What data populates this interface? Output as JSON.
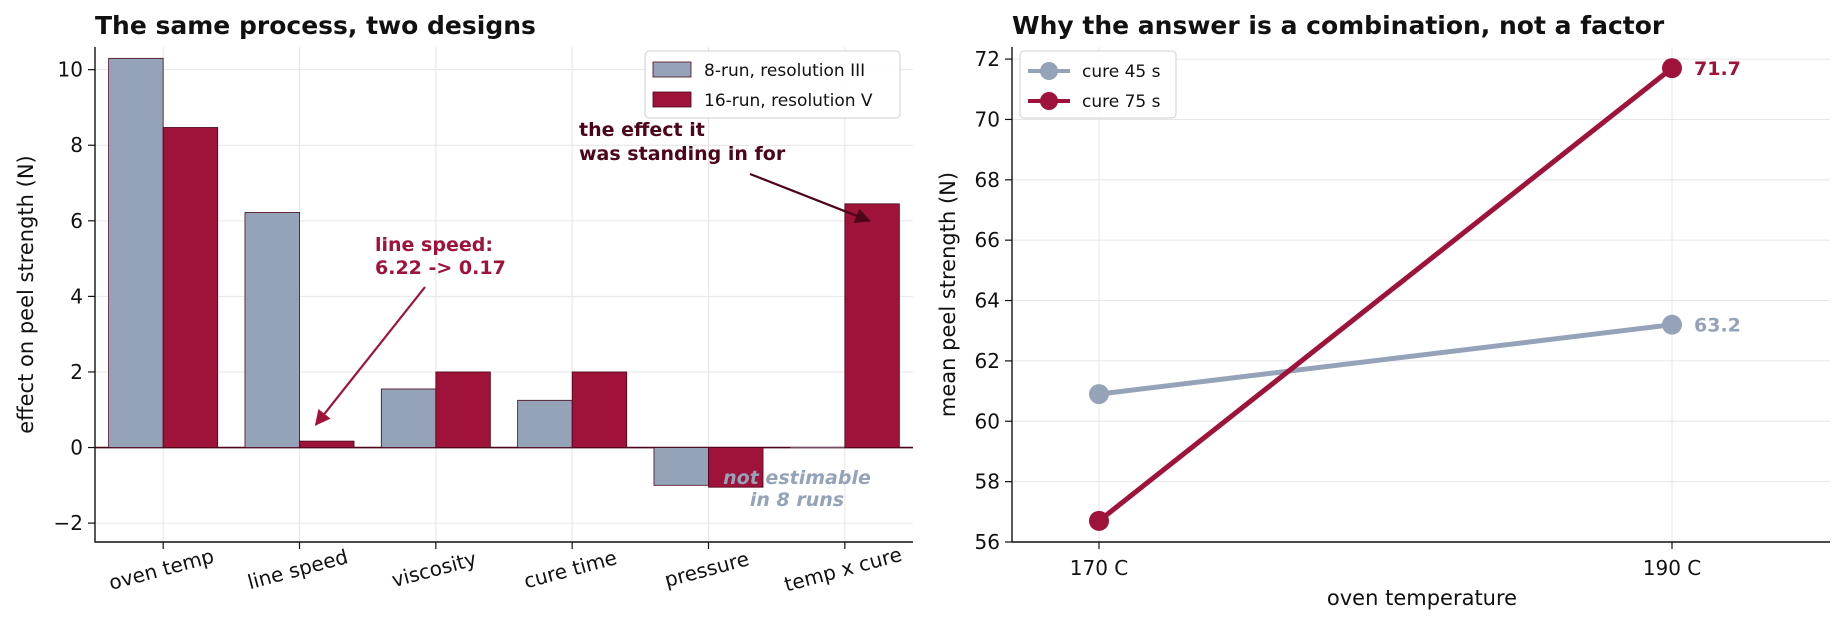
{
  "colors": {
    "iii": "#94a3b8",
    "v": "#9f1239",
    "dark_annot": "#4c0519",
    "spine": "#111111",
    "zero_line": "#4c0519"
  },
  "chart_data": [
    {
      "type": "bar",
      "title": "The same process, two designs",
      "xlabel": "",
      "ylabel": "effect on peel strength (N)",
      "categories": [
        "oven temp",
        "line speed",
        "viscosity",
        "cure time",
        "pressure",
        "temp x cure"
      ],
      "series": [
        {
          "name": "8-run, resolution III",
          "values": [
            10.3,
            6.22,
            1.55,
            1.25,
            -1.0,
            0.0
          ]
        },
        {
          "name": "16-run, resolution V",
          "values": [
            8.47,
            0.17,
            2.0,
            2.0,
            -1.05,
            6.45
          ]
        }
      ],
      "ylim": [
        -2.5,
        10.6
      ],
      "yticks": [
        -2,
        0,
        2,
        4,
        6,
        8,
        10
      ],
      "yticklabels": [
        "−2",
        "0",
        "2",
        "4",
        "6",
        "8",
        "10"
      ],
      "grid": true,
      "legend_position": "top-right",
      "annotations": [
        {
          "text_lines": [
            "line speed:",
            "6.22 -> 0.17"
          ],
          "target_category": "line speed",
          "target_value": 0.5
        },
        {
          "text_lines": [
            "the effect it",
            "was standing in for"
          ],
          "target_category": "temp x cure",
          "target_value": 6.0
        },
        {
          "text_lines": [
            "not estimable",
            "in 8 runs"
          ],
          "target_category": "temp x cure"
        }
      ]
    },
    {
      "type": "line",
      "title": "Why the answer is a combination, not a factor",
      "xlabel": "oven temperature",
      "ylabel": "mean peel strength (N)",
      "categories": [
        "170 C",
        "190 C"
      ],
      "series": [
        {
          "name": "cure 45 s",
          "values": [
            60.9,
            63.2
          ],
          "end_label": "63.2"
        },
        {
          "name": "cure 75 s",
          "values": [
            56.7,
            71.7
          ],
          "end_label": "71.7"
        }
      ],
      "ylim": [
        56,
        72.4
      ],
      "yticks": [
        56,
        58,
        60,
        62,
        64,
        66,
        68,
        70,
        72
      ],
      "grid": true,
      "legend_position": "top-left"
    }
  ]
}
